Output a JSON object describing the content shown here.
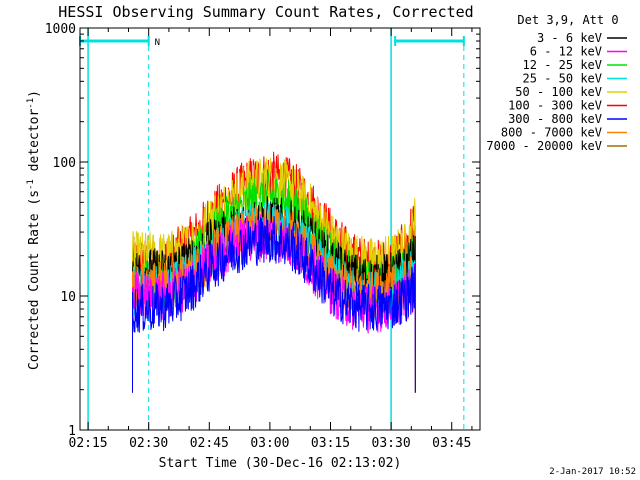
{
  "chart_data": {
    "type": "line",
    "title": "HESSI Observing Summary Count Rates, Corrected",
    "xlabel": "Start Time (30-Dec-16 02:13:02)",
    "ylabel_main": "Corrected Count Rate (s",
    "ylabel_sup1": "-1",
    "ylabel_mid": " detector",
    "ylabel_sup2": "-1",
    "ylabel_end": ")",
    "yscale": "log",
    "ylim": [
      1,
      1000
    ],
    "yticks": [
      {
        "value": 1,
        "label": "1"
      },
      {
        "value": 10,
        "label": "10"
      },
      {
        "value": 100,
        "label": "100"
      },
      {
        "value": 1000,
        "label": "1000"
      }
    ],
    "xlim_minutes": [
      133.0,
      232.0
    ],
    "xticks": [
      {
        "value": 135,
        "label": "02:15"
      },
      {
        "value": 150,
        "label": "02:30"
      },
      {
        "value": 165,
        "label": "02:45"
      },
      {
        "value": 180,
        "label": "03:00"
      },
      {
        "value": 195,
        "label": "03:15"
      },
      {
        "value": 210,
        "label": "03:30"
      },
      {
        "value": 225,
        "label": "03:45"
      }
    ],
    "legend": {
      "placement": "right",
      "header": "Det 3,9, Att 0",
      "entries": [
        {
          "label": "3 - 6 keV",
          "color": "#000000"
        },
        {
          "label": "6 - 12 keV",
          "color": "#ff00ff"
        },
        {
          "label": "12 - 25 keV",
          "color": "#00e000"
        },
        {
          "label": "25 - 50 keV",
          "color": "#00e0e0"
        },
        {
          "label": "50 - 100 keV",
          "color": "#e0d000"
        },
        {
          "label": "100 - 300 keV",
          "color": "#ff0000"
        },
        {
          "label": "300 - 800 keV",
          "color": "#0000ff"
        },
        {
          "label": "800 - 7000 keV",
          "color": "#ff8000"
        },
        {
          "label": "7000 - 20000 keV",
          "color": "#a07000"
        }
      ]
    },
    "night_intervals": [
      {
        "start": 133.0,
        "end": 150.0,
        "label": "N"
      },
      {
        "start": 211.0,
        "end": 228.0,
        "label": ""
      }
    ],
    "saa_marks": [
      135.0,
      210.0
    ],
    "data_interval": [
      146.0,
      216.0
    ],
    "series": [
      {
        "name": "100 - 300 keV",
        "color": "#ff0000",
        "x": [
          146,
          150,
          155,
          160,
          165,
          170,
          175,
          180,
          185,
          190,
          195,
          200,
          205,
          210,
          214,
          216
        ],
        "y": [
          18,
          18,
          19,
          25,
          38,
          55,
          72,
          80,
          70,
          50,
          30,
          20,
          17,
          18,
          25,
          40
        ]
      },
      {
        "name": "50 - 100 keV",
        "color": "#e0d000",
        "x": [
          146,
          150,
          155,
          160,
          165,
          170,
          175,
          180,
          185,
          190,
          195,
          200,
          205,
          210,
          214,
          216
        ],
        "y": [
          20,
          20,
          20,
          24,
          36,
          52,
          68,
          75,
          66,
          46,
          28,
          20,
          18,
          19,
          24,
          38
        ]
      },
      {
        "name": "12 - 25 keV",
        "color": "#00e000",
        "x": [
          146,
          150,
          155,
          160,
          165,
          170,
          175,
          180,
          185,
          190,
          195,
          200,
          205,
          210,
          214,
          216
        ],
        "y": [
          12,
          12,
          12,
          16,
          26,
          38,
          50,
          56,
          48,
          33,
          20,
          14,
          12,
          13,
          16,
          22
        ]
      },
      {
        "name": "3 - 6 keV",
        "color": "#000000",
        "x": [
          146,
          150,
          155,
          160,
          165,
          170,
          175,
          180,
          185,
          190,
          195,
          200,
          205,
          210,
          214,
          216
        ],
        "y": [
          15,
          15,
          15,
          18,
          24,
          30,
          35,
          37,
          34,
          26,
          18,
          14,
          13,
          14,
          16,
          20
        ]
      },
      {
        "name": "25 - 50 keV",
        "color": "#00e0e0",
        "x": [
          146,
          150,
          155,
          160,
          165,
          170,
          175,
          180,
          185,
          190,
          195,
          200,
          205,
          210,
          214,
          216
        ],
        "y": [
          11,
          11,
          11,
          14,
          20,
          27,
          32,
          34,
          30,
          22,
          14,
          11,
          10,
          11,
          13,
          16
        ]
      },
      {
        "name": "800 - 7000 keV",
        "color": "#ff8000",
        "x": [
          146,
          150,
          155,
          160,
          165,
          170,
          175,
          180,
          185,
          190,
          195,
          200,
          205,
          210,
          214,
          216
        ],
        "y": [
          12,
          12,
          12,
          14,
          19,
          26,
          31,
          33,
          29,
          21,
          14,
          11,
          10,
          11,
          12,
          15
        ]
      },
      {
        "name": "6 - 12 keV",
        "color": "#ff00ff",
        "x": [
          146,
          150,
          155,
          160,
          165,
          170,
          175,
          180,
          185,
          190,
          195,
          200,
          205,
          210,
          214,
          216
        ],
        "y": [
          10,
          10,
          10,
          12,
          17,
          23,
          27,
          28,
          25,
          17,
          11,
          8.5,
          8,
          8.5,
          10,
          12
        ]
      },
      {
        "name": "300 - 800 keV",
        "color": "#0000ff",
        "x": [
          146,
          150,
          155,
          160,
          165,
          170,
          175,
          180,
          185,
          190,
          195,
          200,
          205,
          210,
          214,
          216
        ],
        "y": [
          8,
          8,
          8.5,
          11,
          16,
          21,
          25,
          27,
          24,
          17,
          11,
          8.5,
          8,
          8.5,
          10,
          12
        ]
      }
    ]
  },
  "footer": {
    "date_stamp": "2-Jan-2017 10:52"
  }
}
